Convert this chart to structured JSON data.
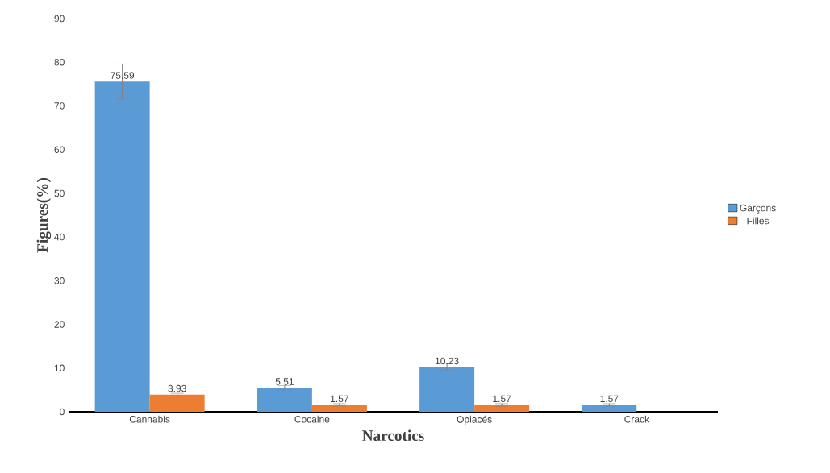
{
  "chart_data": {
    "type": "bar",
    "xlabel": "Narcotics",
    "ylabel": "Figures(%)",
    "categories": [
      "Cannabis",
      "Cocaine",
      "Opiacés",
      "Crack"
    ],
    "series": [
      {
        "name": "Garçons",
        "color": "#5b9bd5",
        "values": [
          75.59,
          5.51,
          10.23,
          1.57
        ],
        "errors": [
          4,
          0.5,
          0.8,
          0.3
        ],
        "value_labels": [
          "75.59",
          "5.51",
          "10.23",
          "1.57"
        ]
      },
      {
        "name": "Filles",
        "color": "#ed7d31",
        "values": [
          3.93,
          1.57,
          1.57,
          0
        ],
        "errors": [
          0.3,
          0.3,
          0.3,
          null
        ],
        "value_labels": [
          "3.93",
          "1.57",
          "1.57",
          null
        ]
      }
    ],
    "ylim": [
      0,
      90
    ],
    "yticks": [
      0,
      10,
      20,
      30,
      40,
      50,
      60,
      70,
      80,
      90
    ],
    "grid": false,
    "legend": "right"
  }
}
